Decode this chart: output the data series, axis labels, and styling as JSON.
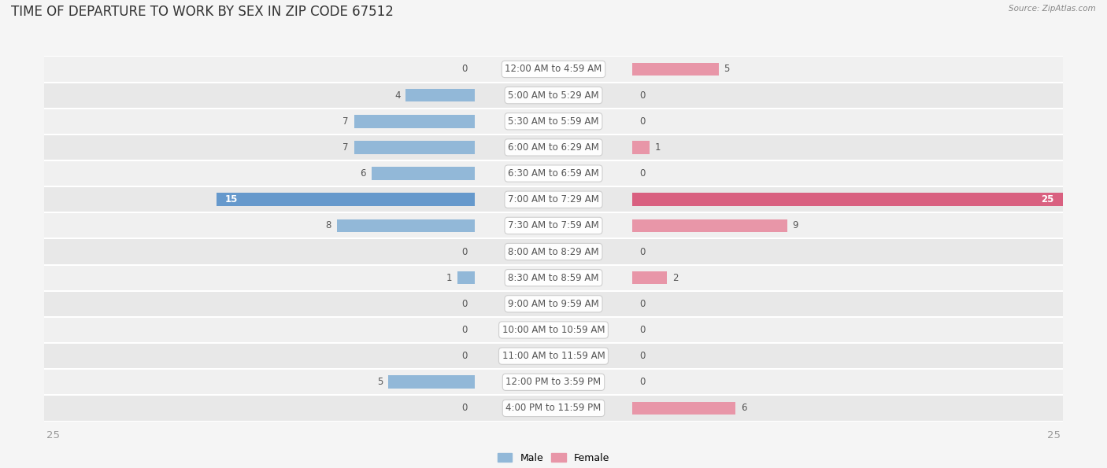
{
  "title": "Time of Departure to Work by Sex in Zip Code 67512",
  "source": "Source: ZipAtlas.com",
  "categories": [
    "12:00 AM to 4:59 AM",
    "5:00 AM to 5:29 AM",
    "5:30 AM to 5:59 AM",
    "6:00 AM to 6:29 AM",
    "6:30 AM to 6:59 AM",
    "7:00 AM to 7:29 AM",
    "7:30 AM to 7:59 AM",
    "8:00 AM to 8:29 AM",
    "8:30 AM to 8:59 AM",
    "9:00 AM to 9:59 AM",
    "10:00 AM to 10:59 AM",
    "11:00 AM to 11:59 AM",
    "12:00 PM to 3:59 PM",
    "4:00 PM to 11:59 PM"
  ],
  "male_values": [
    0,
    4,
    7,
    7,
    6,
    15,
    8,
    0,
    1,
    0,
    0,
    0,
    5,
    0
  ],
  "female_values": [
    5,
    0,
    0,
    1,
    0,
    25,
    9,
    0,
    2,
    0,
    0,
    0,
    0,
    6
  ],
  "male_color": "#92b8d8",
  "female_color": "#e896a8",
  "max_val": 25,
  "bg_color": "#f5f5f5",
  "row_colors": [
    "#f0f0f0",
    "#e8e8e8"
  ],
  "bar_label_color": "#555555",
  "title_color": "#333333",
  "category_text_color": "#555555",
  "axis_label_color": "#999999",
  "title_fontsize": 12,
  "category_fontsize": 8.5,
  "value_fontsize": 8.5,
  "legend_fontsize": 9,
  "highlight_male_color": "#6699cc",
  "highlight_female_color": "#d96080"
}
